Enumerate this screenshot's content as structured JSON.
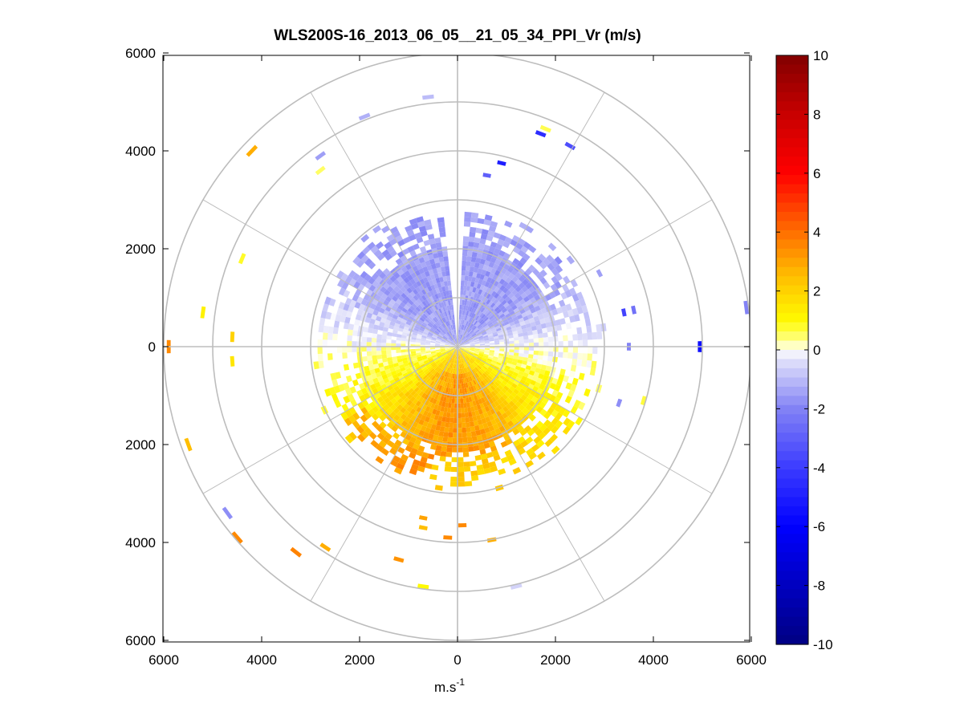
{
  "chart_data": {
    "type": "heatmap",
    "subtype": "polar-ppi",
    "title": "WLS200S-16_2013_06_05__21_05_34_PPI_Vr (m/s)",
    "xlabel": "m.s",
    "xlabel_superscript": "-1",
    "x_ticks": [
      "6000",
      "4000",
      "2000",
      "0",
      "2000",
      "4000",
      "6000"
    ],
    "y_ticks": [
      "6000",
      "4000",
      "2000",
      "0",
      "2000",
      "4000",
      "6000"
    ],
    "xlim": [
      -6000,
      6000
    ],
    "ylim": [
      -6000,
      6000
    ],
    "range_rings_m": [
      1000,
      2000,
      3000,
      4000,
      5000,
      6000
    ],
    "spoke_angles_deg": [
      0,
      30,
      60,
      90,
      120,
      150,
      180,
      210,
      240,
      270,
      300,
      330
    ],
    "colorbar": {
      "label_unit": "m/s",
      "range": [
        -10,
        10
      ],
      "tick_values": [
        10,
        8,
        6,
        4,
        2,
        0,
        -2,
        -4,
        -6,
        -8,
        -10
      ],
      "tick_labels": [
        "10",
        "8",
        "6",
        "4",
        "2",
        "0",
        "-2",
        "-4",
        "-6",
        "-8",
        "-10"
      ]
    },
    "field_description_values": {
      "north_sector_velocity_ms": -1.5,
      "south_sector_velocity_ms": 2.0,
      "south_core_velocity_ms": 3.0,
      "valid_data_max_range_m": 3000
    },
    "sparse_returns": [
      {
        "x": -4200,
        "y": 4000,
        "v": 2.8
      },
      {
        "x": -2800,
        "y": 3600,
        "v": 0.5
      },
      {
        "x": -2800,
        "y": 3900,
        "v": -1.5
      },
      {
        "x": -1900,
        "y": 4700,
        "v": -1.2
      },
      {
        "x": -600,
        "y": 5100,
        "v": -1.0
      },
      {
        "x": 1700,
        "y": 4350,
        "v": -4.5
      },
      {
        "x": 1800,
        "y": 4450,
        "v": 0.6
      },
      {
        "x": 2300,
        "y": 4100,
        "v": -3.5
      },
      {
        "x": 900,
        "y": 3750,
        "v": -5.0
      },
      {
        "x": 600,
        "y": 3500,
        "v": -3.0
      },
      {
        "x": -5200,
        "y": 700,
        "v": 1.2
      },
      {
        "x": -4600,
        "y": 200,
        "v": 2.0
      },
      {
        "x": -4400,
        "y": 1800,
        "v": 0.8
      },
      {
        "x": -5900,
        "y": 0,
        "v": 3.5
      },
      {
        "x": -4600,
        "y": -300,
        "v": 1.5
      },
      {
        "x": 4950,
        "y": 0,
        "v": -5.5
      },
      {
        "x": 5900,
        "y": 800,
        "v": -2.0
      },
      {
        "x": 3400,
        "y": 700,
        "v": -3.8
      },
      {
        "x": 3600,
        "y": 750,
        "v": -2.5
      },
      {
        "x": 3500,
        "y": 0,
        "v": -2.0
      },
      {
        "x": 3300,
        "y": -1150,
        "v": -1.8
      },
      {
        "x": 3800,
        "y": -1100,
        "v": 0.7
      },
      {
        "x": 2900,
        "y": 1500,
        "v": -1.5
      },
      {
        "x": -5500,
        "y": -2000,
        "v": 2.5
      },
      {
        "x": -4700,
        "y": -3400,
        "v": -1.8
      },
      {
        "x": -4500,
        "y": -3900,
        "v": 3.5
      },
      {
        "x": -3300,
        "y": -4200,
        "v": 3.6
      },
      {
        "x": -2700,
        "y": -4100,
        "v": 2.8
      },
      {
        "x": -1200,
        "y": -4350,
        "v": 3.3
      },
      {
        "x": -700,
        "y": -3500,
        "v": 3.0
      },
      {
        "x": -700,
        "y": -3700,
        "v": 2.5
      },
      {
        "x": -200,
        "y": -3900,
        "v": 3.5
      },
      {
        "x": 100,
        "y": -3650,
        "v": 3.5
      },
      {
        "x": 700,
        "y": -3950,
        "v": 2.8
      },
      {
        "x": 1200,
        "y": -4900,
        "v": -0.6
      },
      {
        "x": -700,
        "y": -4900,
        "v": 1.0
      }
    ]
  }
}
